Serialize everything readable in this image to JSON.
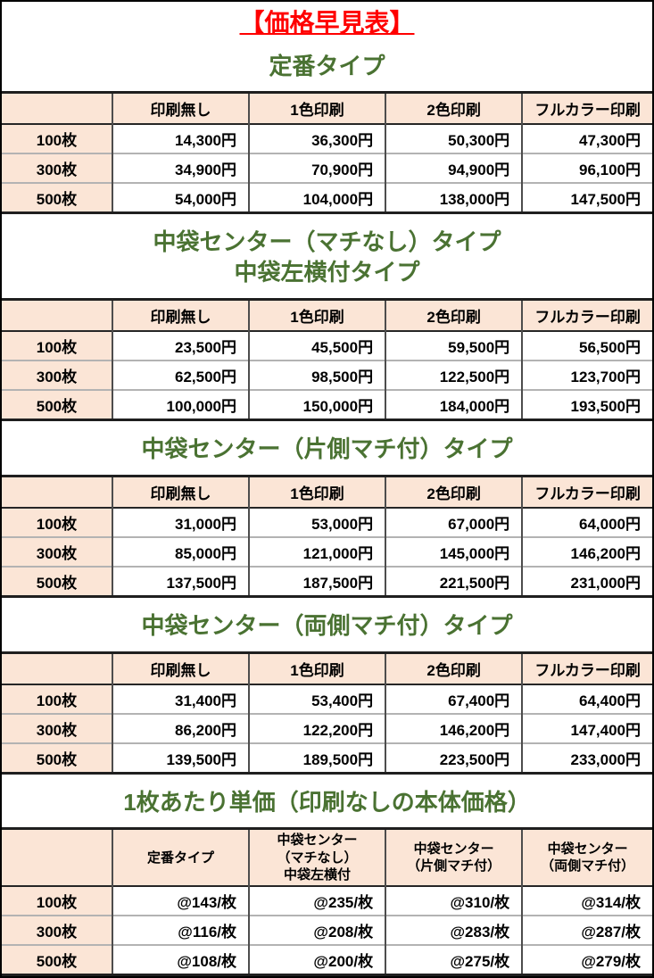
{
  "page_title": "【価格早見表】",
  "colors": {
    "title_red": "#ff0000",
    "section_green": "#4a7232",
    "header_peach": "#fbe5d6",
    "border_dark": "#1f1f1f",
    "row_divider_gray": "#b3b3b3"
  },
  "sections": [
    {
      "title": "定番タイプ",
      "columns": [
        "印刷無し",
        "1色印刷",
        "2色印刷",
        "フルカラー印刷"
      ],
      "rows": [
        {
          "label": "100枚",
          "values": [
            "14,300円",
            "36,300円",
            "50,300円",
            "47,300円"
          ]
        },
        {
          "label": "300枚",
          "values": [
            "34,900円",
            "70,900円",
            "94,900円",
            "96,100円"
          ]
        },
        {
          "label": "500枚",
          "values": [
            "54,000円",
            "104,000円",
            "138,000円",
            "147,500円"
          ]
        }
      ]
    },
    {
      "title": "中袋センター（マチなし）タイプ\n中袋左横付タイプ",
      "columns": [
        "印刷無し",
        "1色印刷",
        "2色印刷",
        "フルカラー印刷"
      ],
      "rows": [
        {
          "label": "100枚",
          "values": [
            "23,500円",
            "45,500円",
            "59,500円",
            "56,500円"
          ]
        },
        {
          "label": "300枚",
          "values": [
            "62,500円",
            "98,500円",
            "122,500円",
            "123,700円"
          ]
        },
        {
          "label": "500枚",
          "values": [
            "100,000円",
            "150,000円",
            "184,000円",
            "193,500円"
          ]
        }
      ]
    },
    {
      "title": "中袋センター（片側マチ付）タイプ",
      "columns": [
        "印刷無し",
        "1色印刷",
        "2色印刷",
        "フルカラー印刷"
      ],
      "rows": [
        {
          "label": "100枚",
          "values": [
            "31,000円",
            "53,000円",
            "67,000円",
            "64,000円"
          ]
        },
        {
          "label": "300枚",
          "values": [
            "85,000円",
            "121,000円",
            "145,000円",
            "146,200円"
          ]
        },
        {
          "label": "500枚",
          "values": [
            "137,500円",
            "187,500円",
            "221,500円",
            "231,000円"
          ]
        }
      ]
    },
    {
      "title": "中袋センター（両側マチ付）タイプ",
      "columns": [
        "印刷無し",
        "1色印刷",
        "2色印刷",
        "フルカラー印刷"
      ],
      "rows": [
        {
          "label": "100枚",
          "values": [
            "31,400円",
            "53,400円",
            "67,400円",
            "64,400円"
          ]
        },
        {
          "label": "300枚",
          "values": [
            "86,200円",
            "122,200円",
            "146,200円",
            "147,400円"
          ]
        },
        {
          "label": "500枚",
          "values": [
            "139,500円",
            "189,500円",
            "223,500円",
            "233,000円"
          ]
        }
      ]
    },
    {
      "title": "1枚あたり単価（印刷なしの本体価格）",
      "compact_header": true,
      "columns": [
        "定番タイプ",
        "中袋センター\n（マチなし）\n中袋左横付",
        "中袋センター\n（片側マチ付）",
        "中袋センター\n（両側マチ付）"
      ],
      "rows": [
        {
          "label": "100枚",
          "values": [
            "@143/枚",
            "@235/枚",
            "@310/枚",
            "@314/枚"
          ]
        },
        {
          "label": "300枚",
          "values": [
            "@116/枚",
            "@208/枚",
            "@283/枚",
            "@287/枚"
          ]
        },
        {
          "label": "500枚",
          "values": [
            "@108/枚",
            "@200/枚",
            "@275/枚",
            "@279/枚"
          ]
        }
      ]
    }
  ]
}
